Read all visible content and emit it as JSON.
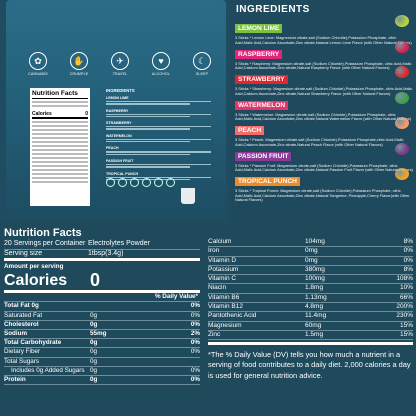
{
  "package": {
    "benefits": [
      {
        "label": "CANNABIS",
        "icon": "leaf-icon"
      },
      {
        "label": "CRUMPLE",
        "icon": "cramp-icon"
      },
      {
        "label": "TRAVEL",
        "icon": "plane-icon"
      },
      {
        "label": "ALCOHOL",
        "icon": "glass-icon"
      },
      {
        "label": "SLEEP",
        "icon": "moon-icon"
      }
    ],
    "mini_facts_title": "Nutrition Facts",
    "mini_calories_label": "Calories",
    "mini_calories_value": "0",
    "mini_ingredients_title": "INGREDIENTS",
    "mini_flavors": [
      "LEMON LIME",
      "RASPBERRY",
      "STRAWBERRY",
      "WATERMELON",
      "PEACH",
      "PASSION FRUIT",
      "TROPICAL PUNCH"
    ]
  },
  "ingredients": {
    "title": "INGREDIENTS",
    "flavors": [
      {
        "name": "LEMON LIME",
        "color": "#7cc142",
        "text": "3 Sticks * Lemon Lime: Magnesium citrate,salt (Sodium Chloride),Potassium Phosphate, citric Acid,Malic Acid,Calcium Ascorbate,Zinc citrate,Natural Lemon Lime Flavor (with Other Natural Flavors)"
      },
      {
        "name": "RASPBERRY",
        "color": "#e2257a",
        "text": "3 Sticks * Raspberry: Magnesium citrate,salt (Sodium Chloride),Potassium Phosphate, citric Acid,Malic Acid,Calcium Ascorbate,Zinc citrate,Natural Raspberry Flavor (with Other Natural Flavors)"
      },
      {
        "name": "STRAWBERRY",
        "color": "#e3262e",
        "text": "3 Sticks * Strawberry: Magnesium citrate,salt (Sodium Chloride),Potassium Phosphate, citric Acid,Malic Acid,Calcium Ascorbate,Zinc citrate,Natural Strawberry Flavor (with Other Natural Flavors)"
      },
      {
        "name": "WATERMELON",
        "color": "#e6336b",
        "text": "3 Sticks * Watermelon: Magnesium citrate,salt (Sodium Chloride),Potassium Phosphate, citric Acid,Malic Acid,Calcium Ascorbate,Zinc citrate,Natural Watermelon Flavor (with Other Natural Flavors)"
      },
      {
        "name": "PEACH",
        "color": "#f26d6b",
        "text": "3 Sticks * Peach: Magnesium citrate,salt (Sodium Chloride),Potassium Phosphate,citric Acid,Malic Acid,Calcium Ascorbate,Zinc citrate,Natural Peach Flavor (with Other Natural Flavors)"
      },
      {
        "name": "PASSION FRUIT",
        "color": "#8a3b97",
        "text": "3 Sticks * Passion Fruit: Magnesium citrate,salt (Sodium Chloride),Potassium Phosphate, citric Acid,Malic Acid,Calcium Ascorbate,Zinc citrate,Natural Passion Fruit Flavor (with Other Natural Flavors)"
      },
      {
        "name": "TROPICAL PUNCH",
        "color": "#f08a24",
        "text": "3 Sticks * Tropical Punch: Magnesium citrate,salt (Sodium Chloride),Potassium Phosphate, citric Acid,Malic Acid,Calcium Ascorbate,Zinc citrate,Natural Tangerine, Pineapple,Cherry Flavor(with Other Natural Flavors)"
      }
    ]
  },
  "nutrition": {
    "title": "Nutrition Facts",
    "servings": "20 Servings per Container",
    "product": "Electrolytes Powder",
    "serving_size_label": "Serving size",
    "serving_size_value": "1tbsp(3.4g)",
    "amount_label": "Amount per serving",
    "calories_label": "Calories",
    "calories_value": "0",
    "dv_header": "% Daily Value*",
    "rows": [
      {
        "name": "Total Fat 0g",
        "amount": "",
        "dv": "0%",
        "bold": true,
        "indent": false
      },
      {
        "name": "Saturated Fat",
        "amount": "0g",
        "dv": "0%",
        "bold": false,
        "indent": false
      },
      {
        "name": "Cholesterol",
        "amount": "0g",
        "dv": "0%",
        "bold": true,
        "indent": false
      },
      {
        "name": "Sodium",
        "amount": "55mg",
        "dv": "2%",
        "bold": true,
        "indent": false
      },
      {
        "name": "Total Carbohydrate",
        "amount": "0g",
        "dv": "0%",
        "bold": true,
        "indent": false
      },
      {
        "name": "Dietary Fiber",
        "amount": "0g",
        "dv": "0%",
        "bold": false,
        "indent": false
      },
      {
        "name": "Total Sugars",
        "amount": "0g",
        "dv": "",
        "bold": false,
        "indent": false
      },
      {
        "name": "Includes 0g Added Sugars",
        "amount": "0g",
        "dv": "0%",
        "bold": false,
        "indent": true
      },
      {
        "name": "Protein",
        "amount": "0g",
        "dv": "0%",
        "bold": true,
        "indent": false
      }
    ]
  },
  "vitamins": {
    "rows": [
      {
        "name": "Calcium",
        "amount": "104mg",
        "dv": "8%"
      },
      {
        "name": "Iron",
        "amount": "0mg",
        "dv": "0%"
      },
      {
        "name": "Vitamin D",
        "amount": "0mg",
        "dv": "0%"
      },
      {
        "name": "Potassium",
        "amount": "380mg",
        "dv": "8%"
      },
      {
        "name": "Vitamin C",
        "amount": "100mg",
        "dv": "108%"
      },
      {
        "name": "Niacin",
        "amount": "1.8mg",
        "dv": "10%"
      },
      {
        "name": "Vitamin B6",
        "amount": "1.13mg",
        "dv": "66%"
      },
      {
        "name": "Vitamin B12",
        "amount": "4.8mg",
        "dv": "200%"
      },
      {
        "name": "Pantothenic Acid",
        "amount": "11.4mg",
        "dv": "230%"
      },
      {
        "name": "Magnesium",
        "amount": "60mg",
        "dv": "15%"
      },
      {
        "name": "Zinc",
        "amount": "1.5mg",
        "dv": "15%"
      }
    ],
    "footnote": "*The % Daily Value (DV) tells you how much a nutrient in a serving of food contributes to a daily diet. 2,000 calories a day is used for general nutrition advice."
  }
}
